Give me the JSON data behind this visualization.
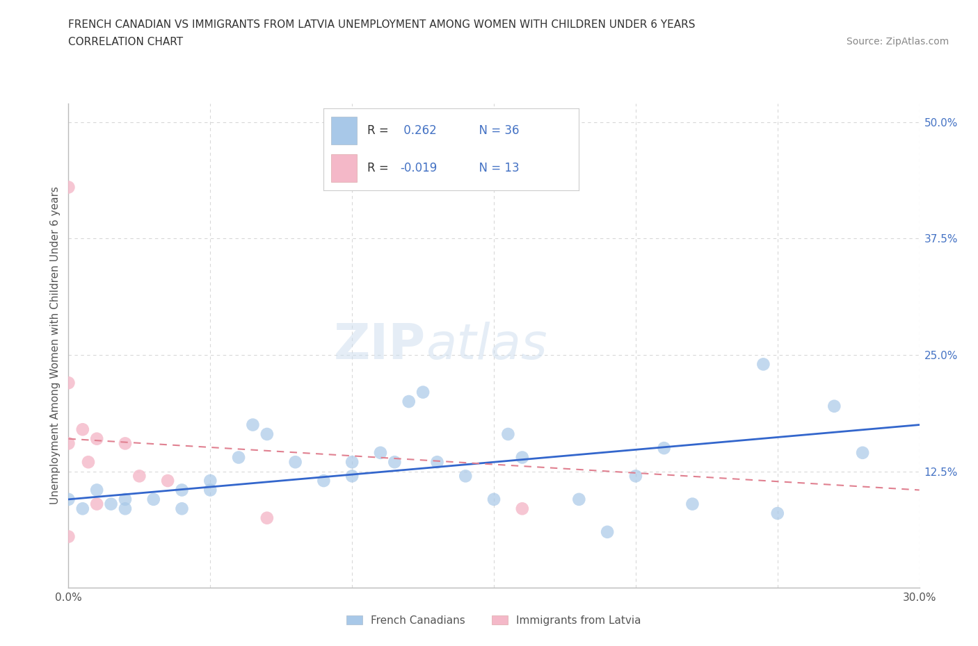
{
  "title_line1": "FRENCH CANADIAN VS IMMIGRANTS FROM LATVIA UNEMPLOYMENT AMONG WOMEN WITH CHILDREN UNDER 6 YEARS",
  "title_line2": "CORRELATION CHART",
  "source_text": "Source: ZipAtlas.com",
  "ylabel": "Unemployment Among Women with Children Under 6 years",
  "xlim": [
    0.0,
    0.3
  ],
  "ylim": [
    0.0,
    0.52
  ],
  "xtick_vals": [
    0.0,
    0.05,
    0.1,
    0.15,
    0.2,
    0.25,
    0.3
  ],
  "xtick_labels": [
    "0.0%",
    "",
    "",
    "",
    "",
    "",
    "30.0%"
  ],
  "ytick_vals": [
    0.0,
    0.125,
    0.25,
    0.375,
    0.5
  ],
  "ytick_labels": [
    "",
    "12.5%",
    "25.0%",
    "37.5%",
    "50.0%"
  ],
  "blue_scatter_x": [
    0.0,
    0.005,
    0.01,
    0.015,
    0.02,
    0.02,
    0.03,
    0.04,
    0.04,
    0.05,
    0.05,
    0.06,
    0.065,
    0.07,
    0.08,
    0.09,
    0.1,
    0.1,
    0.11,
    0.115,
    0.12,
    0.125,
    0.13,
    0.14,
    0.15,
    0.155,
    0.16,
    0.18,
    0.19,
    0.2,
    0.21,
    0.22,
    0.245,
    0.25,
    0.27,
    0.28
  ],
  "blue_scatter_y": [
    0.095,
    0.085,
    0.105,
    0.09,
    0.095,
    0.085,
    0.095,
    0.105,
    0.085,
    0.105,
    0.115,
    0.14,
    0.175,
    0.165,
    0.135,
    0.115,
    0.135,
    0.12,
    0.145,
    0.135,
    0.2,
    0.21,
    0.135,
    0.12,
    0.095,
    0.165,
    0.14,
    0.095,
    0.06,
    0.12,
    0.15,
    0.09,
    0.24,
    0.08,
    0.195,
    0.145
  ],
  "pink_scatter_x": [
    0.0,
    0.0,
    0.0,
    0.0,
    0.005,
    0.007,
    0.01,
    0.01,
    0.02,
    0.025,
    0.035,
    0.07,
    0.16
  ],
  "pink_scatter_y": [
    0.43,
    0.22,
    0.155,
    0.055,
    0.17,
    0.135,
    0.16,
    0.09,
    0.155,
    0.12,
    0.115,
    0.075,
    0.085
  ],
  "blue_line_x": [
    0.0,
    0.3
  ],
  "blue_line_y": [
    0.095,
    0.175
  ],
  "pink_line_x": [
    0.0,
    0.3
  ],
  "pink_line_y": [
    0.16,
    0.105
  ],
  "blue_color": "#a8c8e8",
  "pink_color": "#f4b8c8",
  "blue_line_color": "#3366cc",
  "pink_line_color": "#e08090",
  "watermark_zip": "ZIP",
  "watermark_atlas": "atlas",
  "background_color": "#ffffff",
  "grid_color": "#d8d8d8",
  "legend_blue_label_r": "R =",
  "legend_blue_r_val": " 0.262",
  "legend_blue_n": "N = 36",
  "legend_pink_label_r": "R =",
  "legend_pink_r_val": "-0.019",
  "legend_pink_n": "N = 13"
}
